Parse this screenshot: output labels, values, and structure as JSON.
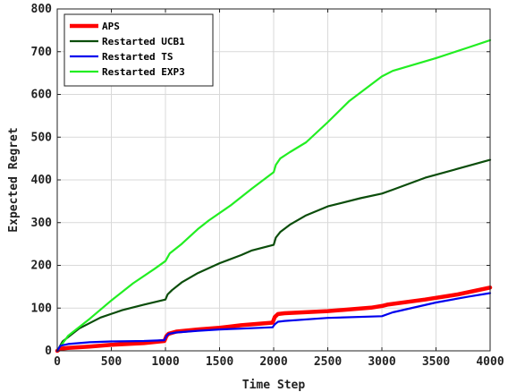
{
  "chart_data": {
    "type": "line",
    "title": "",
    "xlabel": "Time Step",
    "ylabel": "Expected Regret",
    "xlim": [
      0,
      4000
    ],
    "ylim": [
      0,
      800
    ],
    "xticks": [
      0,
      500,
      1000,
      1500,
      2000,
      2500,
      3000,
      3500,
      4000
    ],
    "yticks": [
      0,
      100,
      200,
      300,
      400,
      500,
      600,
      700,
      800
    ],
    "grid": true,
    "legend_position": "top-left",
    "series": [
      {
        "name": "APS",
        "color": "#ff0000",
        "width": 4.5,
        "x": [
          0,
          30,
          100,
          300,
          500,
          800,
          990,
          1010,
          1030,
          1100,
          1300,
          1500,
          1700,
          1990,
          2010,
          2040,
          2100,
          2500,
          2900,
          3000,
          3050,
          3400,
          3700,
          4000
        ],
        "y": [
          0,
          5,
          7,
          10,
          14,
          18,
          23,
          35,
          40,
          45,
          50,
          54,
          60,
          66,
          79,
          86,
          88,
          93,
          101,
          105,
          108,
          120,
          132,
          148
        ]
      },
      {
        "name": "Restarted UCB1",
        "color": "#0b4d0b",
        "width": 2.2,
        "x": [
          0,
          50,
          200,
          400,
          600,
          800,
          1000,
          1020,
          1060,
          1150,
          1300,
          1500,
          1700,
          1800,
          2000,
          2020,
          2060,
          2150,
          2300,
          2500,
          2800,
          3000,
          3100,
          3400,
          3700,
          4000
        ],
        "y": [
          0,
          22,
          52,
          78,
          95,
          108,
          120,
          132,
          142,
          160,
          182,
          205,
          224,
          235,
          248,
          265,
          278,
          295,
          317,
          338,
          357,
          368,
          377,
          405,
          426,
          447
        ]
      },
      {
        "name": "Restarted TS",
        "color": "#0000ee",
        "width": 2.2,
        "x": [
          0,
          30,
          100,
          300,
          500,
          800,
          990,
          1010,
          1030,
          1100,
          1300,
          1500,
          1700,
          1990,
          2010,
          2040,
          2100,
          2500,
          3000,
          3100,
          3500,
          3800,
          4000
        ],
        "y": [
          0,
          12,
          16,
          20,
          22,
          23,
          25,
          35,
          40,
          43,
          47,
          50,
          52,
          55,
          62,
          68,
          70,
          77,
          81,
          90,
          113,
          127,
          135
        ]
      },
      {
        "name": "Restarted EXP3",
        "color": "#22ee22",
        "width": 2.2,
        "x": [
          0,
          100,
          300,
          500,
          700,
          900,
          1000,
          1040,
          1150,
          1300,
          1400,
          1600,
          1800,
          2000,
          2020,
          2060,
          2150,
          2300,
          2500,
          2700,
          3000,
          3100,
          3500,
          3800,
          4000
        ],
        "y": [
          0,
          35,
          75,
          118,
          158,
          192,
          210,
          228,
          250,
          285,
          305,
          340,
          380,
          418,
          435,
          450,
          465,
          488,
          535,
          585,
          642,
          655,
          685,
          710,
          727
        ]
      }
    ]
  }
}
